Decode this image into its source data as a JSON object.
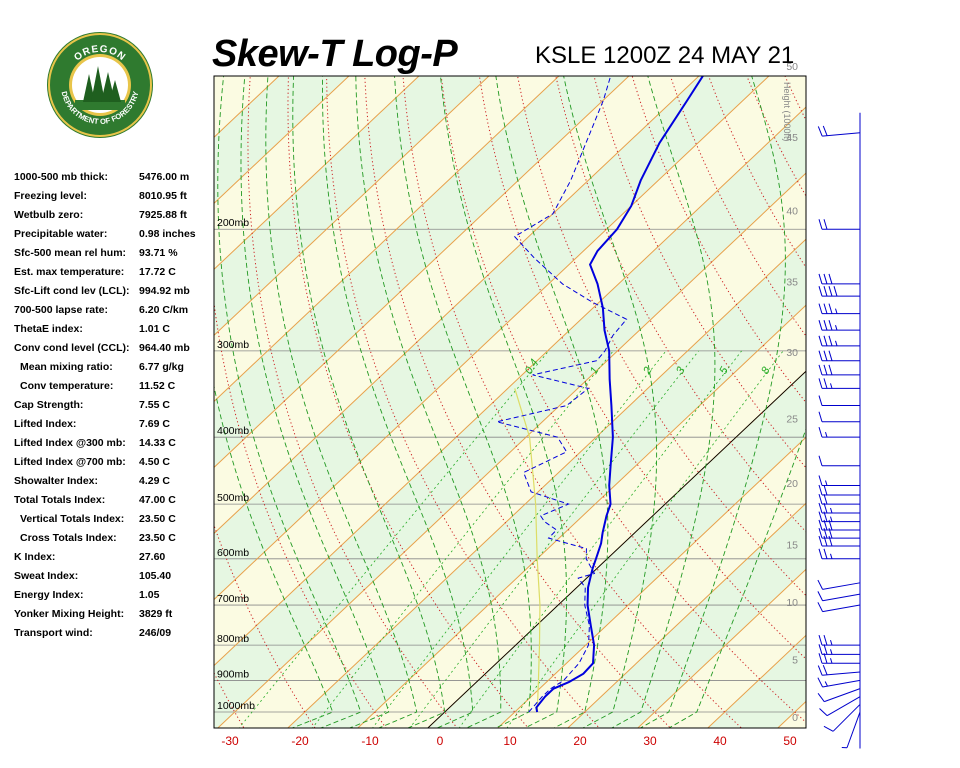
{
  "header": {
    "title": "Skew-T Log-P",
    "station_time": "KSLE 1200Z 24 MAY 21",
    "logo_text_top": "OREGON",
    "logo_text_bottom": "DEPARTMENT OF FORESTRY"
  },
  "indices": [
    {
      "label": "1000-500 mb thick:",
      "value": "5476.00 m",
      "indent": false
    },
    {
      "label": "Freezing level:",
      "value": "8010.95 ft",
      "indent": false
    },
    {
      "label": "Wetbulb zero:",
      "value": "7925.88 ft",
      "indent": false
    },
    {
      "label": "Precipitable water:",
      "value": "0.98 inches",
      "indent": false
    },
    {
      "label": "Sfc-500 mean rel hum:",
      "value": "93.71 %",
      "indent": false
    },
    {
      "label": "Est. max temperature:",
      "value": "17.72 C",
      "indent": false
    },
    {
      "label": "Sfc-Lift cond lev (LCL):",
      "value": "994.92 mb",
      "indent": false
    },
    {
      "label": "700-500 lapse rate:",
      "value": "6.20 C/km",
      "indent": false
    },
    {
      "label": "ThetaE index:",
      "value": "1.01 C",
      "indent": false
    },
    {
      "label": "Conv cond level (CCL):",
      "value": "964.40 mb",
      "indent": false
    },
    {
      "label": "Mean mixing ratio:",
      "value": "6.77 g/kg",
      "indent": true
    },
    {
      "label": "Conv temperature:",
      "value": "11.52 C",
      "indent": true
    },
    {
      "label": "Cap Strength:",
      "value": "7.55 C",
      "indent": false
    },
    {
      "label": "Lifted Index:",
      "value": "7.69 C",
      "indent": false
    },
    {
      "label": "Lifted Index @300 mb:",
      "value": "14.33 C",
      "indent": false
    },
    {
      "label": "Lifted Index @700 mb:",
      "value": "4.50 C",
      "indent": false
    },
    {
      "label": "Showalter Index:",
      "value": "4.29 C",
      "indent": false
    },
    {
      "label": "Total Totals Index:",
      "value": "47.00 C",
      "indent": false
    },
    {
      "label": "Vertical Totals Index:",
      "value": "23.50 C",
      "indent": true
    },
    {
      "label": "Cross Totals Index:",
      "value": "23.50 C",
      "indent": true
    },
    {
      "label": "K Index:",
      "value": "27.60",
      "indent": false
    },
    {
      "label": "Sweat Index:",
      "value": "105.40",
      "indent": false
    },
    {
      "label": "Energy Index:",
      "value": "1.05",
      "indent": false
    },
    {
      "label": "Yonker Mixing Height:",
      "value": "3829 ft",
      "indent": false
    },
    {
      "label": "Transport wind:",
      "value": "246/09",
      "indent": false
    }
  ],
  "chart_data": {
    "type": "line",
    "title": "Skew-T Log-P",
    "subtitle": "KSLE 1200Z 24 MAY 21",
    "xlabel": "",
    "ylabel": "",
    "x_ticks": [
      -30,
      -20,
      -10,
      0,
      10,
      20,
      30,
      40,
      50
    ],
    "pressure_levels": [
      {
        "p": 200,
        "label": "200mb"
      },
      {
        "p": 300,
        "label": "300mb"
      },
      {
        "p": 400,
        "label": "400mb"
      },
      {
        "p": 500,
        "label": "500mb"
      },
      {
        "p": 600,
        "label": "600mb"
      },
      {
        "p": 700,
        "label": "700mb"
      },
      {
        "p": 800,
        "label": "800mb"
      },
      {
        "p": 900,
        "label": "900mb"
      },
      {
        "p": 1000,
        "label": "1000mb"
      }
    ],
    "height_axis_label": "Height (1000ft)",
    "height_ticks": [
      {
        "kft": 0,
        "p": 1016
      },
      {
        "kft": 5,
        "p": 840
      },
      {
        "kft": 10,
        "p": 693
      },
      {
        "kft": 15,
        "p": 572
      },
      {
        "kft": 20,
        "p": 466
      },
      {
        "kft": 25,
        "p": 376
      },
      {
        "kft": 30,
        "p": 301
      },
      {
        "kft": 35,
        "p": 238
      },
      {
        "kft": 40,
        "p": 188
      },
      {
        "kft": 45,
        "p": 147
      },
      {
        "kft": 50,
        "p": 116
      }
    ],
    "mixing_ratio_labels": [
      "0.4",
      "1",
      "2",
      "3",
      "5",
      "8"
    ],
    "mixing_ratio_values": [
      0.4,
      1,
      2,
      3,
      5,
      8
    ],
    "series": [
      {
        "key": "temperature",
        "color": "#0000dd",
        "points": [
          {
            "p": 1000,
            "t": 13.2
          },
          {
            "p": 985,
            "t": 12.4
          },
          {
            "p": 950,
            "t": 12.0
          },
          {
            "p": 925,
            "t": 12.0
          },
          {
            "p": 905,
            "t": 13.2
          },
          {
            "p": 880,
            "t": 14.0
          },
          {
            "p": 850,
            "t": 13.8
          },
          {
            "p": 800,
            "t": 11.2
          },
          {
            "p": 750,
            "t": 7.8
          },
          {
            "p": 700,
            "t": 4.2
          },
          {
            "p": 660,
            "t": 1.6
          },
          {
            "p": 620,
            "t": -0.6
          },
          {
            "p": 600,
            "t": -1.6
          },
          {
            "p": 570,
            "t": -3.2
          },
          {
            "p": 550,
            "t": -4.6
          },
          {
            "p": 520,
            "t": -6.6
          },
          {
            "p": 500,
            "t": -7.8
          },
          {
            "p": 470,
            "t": -10.8
          },
          {
            "p": 440,
            "t": -13.6
          },
          {
            "p": 400,
            "t": -17.6
          },
          {
            "p": 360,
            "t": -22.6
          },
          {
            "p": 330,
            "t": -26.8
          },
          {
            "p": 300,
            "t": -31.2
          },
          {
            "p": 280,
            "t": -35.0
          },
          {
            "p": 260,
            "t": -38.6
          },
          {
            "p": 240,
            "t": -43.0
          },
          {
            "p": 225,
            "t": -47.0
          },
          {
            "p": 215,
            "t": -48.0
          },
          {
            "p": 200,
            "t": -48.5
          },
          {
            "p": 185,
            "t": -50.0
          },
          {
            "p": 170,
            "t": -52.5
          },
          {
            "p": 150,
            "t": -55.5
          },
          {
            "p": 130,
            "t": -58.0
          },
          {
            "p": 110,
            "t": -61.0
          }
        ]
      },
      {
        "key": "dewpoint",
        "color": "#0000dd",
        "points": [
          {
            "p": 1000,
            "t": 12.0
          },
          {
            "p": 950,
            "t": 11.6
          },
          {
            "p": 925,
            "t": 11.6
          },
          {
            "p": 900,
            "t": 12.2
          },
          {
            "p": 850,
            "t": 11.8
          },
          {
            "p": 800,
            "t": 10.4
          },
          {
            "p": 750,
            "t": 7.6
          },
          {
            "p": 700,
            "t": 3.8
          },
          {
            "p": 660,
            "t": 1.2
          },
          {
            "p": 640,
            "t": -1.2
          },
          {
            "p": 630,
            "t": 0.4
          },
          {
            "p": 600,
            "t": -3.0
          },
          {
            "p": 580,
            "t": -4.5
          },
          {
            "p": 560,
            "t": -11.5
          },
          {
            "p": 545,
            "t": -11.6
          },
          {
            "p": 530,
            "t": -14.6
          },
          {
            "p": 520,
            "t": -16.0
          },
          {
            "p": 500,
            "t": -13.8
          },
          {
            "p": 480,
            "t": -21.0
          },
          {
            "p": 450,
            "t": -25.0
          },
          {
            "p": 420,
            "t": -22.0
          },
          {
            "p": 400,
            "t": -25.5
          },
          {
            "p": 380,
            "t": -36.5
          },
          {
            "p": 360,
            "t": -29.0
          },
          {
            "p": 340,
            "t": -28.5
          },
          {
            "p": 325,
            "t": -38.5
          },
          {
            "p": 310,
            "t": -31.5
          },
          {
            "p": 300,
            "t": -31.8
          },
          {
            "p": 285,
            "t": -33.0
          },
          {
            "p": 270,
            "t": -33.5
          },
          {
            "p": 255,
            "t": -41.0
          },
          {
            "p": 240,
            "t": -48.0
          },
          {
            "p": 220,
            "t": -56.0
          },
          {
            "p": 205,
            "t": -62.0
          },
          {
            "p": 190,
            "t": -60.0
          },
          {
            "p": 170,
            "t": -62.5
          },
          {
            "p": 150,
            "t": -66.0
          },
          {
            "p": 130,
            "t": -70.0
          },
          {
            "p": 115,
            "t": -74.0
          }
        ]
      }
    ],
    "parcel_trace": [
      {
        "p": 1000,
        "t": 13.2
      },
      {
        "p": 995,
        "t": 13.0
      },
      {
        "p": 900,
        "t": 8.6
      },
      {
        "p": 800,
        "t": 3.4
      },
      {
        "p": 700,
        "t": -2.6
      },
      {
        "p": 600,
        "t": -10.0
      },
      {
        "p": 500,
        "t": -18.5
      },
      {
        "p": 400,
        "t": -29.5
      },
      {
        "p": 340,
        "t": -39.0
      }
    ],
    "wind_barbs": [
      {
        "p": 1000,
        "dir": 200,
        "kt": 5
      },
      {
        "p": 975,
        "dir": 225,
        "kt": 10
      },
      {
        "p": 950,
        "dir": 240,
        "kt": 10
      },
      {
        "p": 925,
        "dir": 250,
        "kt": 10
      },
      {
        "p": 900,
        "dir": 260,
        "kt": 15
      },
      {
        "p": 875,
        "dir": 265,
        "kt": 20
      },
      {
        "p": 850,
        "dir": 270,
        "kt": 25
      },
      {
        "p": 825,
        "dir": 270,
        "kt": 25
      },
      {
        "p": 800,
        "dir": 270,
        "kt": 25
      },
      {
        "p": 700,
        "dir": 260,
        "kt": 10
      },
      {
        "p": 675,
        "dir": 260,
        "kt": 10
      },
      {
        "p": 650,
        "dir": 260,
        "kt": 10
      },
      {
        "p": 600,
        "dir": 270,
        "kt": 25
      },
      {
        "p": 575,
        "dir": 270,
        "kt": 30
      },
      {
        "p": 560,
        "dir": 270,
        "kt": 30
      },
      {
        "p": 545,
        "dir": 270,
        "kt": 30
      },
      {
        "p": 530,
        "dir": 270,
        "kt": 25
      },
      {
        "p": 515,
        "dir": 270,
        "kt": 25
      },
      {
        "p": 500,
        "dir": 270,
        "kt": 20
      },
      {
        "p": 485,
        "dir": 270,
        "kt": 20
      },
      {
        "p": 470,
        "dir": 270,
        "kt": 15
      },
      {
        "p": 440,
        "dir": 270,
        "kt": 10
      },
      {
        "p": 400,
        "dir": 270,
        "kt": 15
      },
      {
        "p": 380,
        "dir": 270,
        "kt": 10
      },
      {
        "p": 360,
        "dir": 270,
        "kt": 10
      },
      {
        "p": 340,
        "dir": 270,
        "kt": 25
      },
      {
        "p": 325,
        "dir": 270,
        "kt": 30
      },
      {
        "p": 310,
        "dir": 270,
        "kt": 30
      },
      {
        "p": 295,
        "dir": 270,
        "kt": 35
      },
      {
        "p": 280,
        "dir": 270,
        "kt": 35
      },
      {
        "p": 265,
        "dir": 270,
        "kt": 35
      },
      {
        "p": 250,
        "dir": 270,
        "kt": 40
      },
      {
        "p": 240,
        "dir": 270,
        "kt": 30
      },
      {
        "p": 200,
        "dir": 270,
        "kt": 20
      },
      {
        "p": 145,
        "dir": 265,
        "kt": 20
      }
    ]
  },
  "colors": {
    "moist_band": "#e6f7e2",
    "dry_band": "#fbfbe2",
    "isotherm": "#e8a04a",
    "dry_adiabat": "#cc2222",
    "moist_adiabat": "#229922",
    "mixing_ratio": "#22aa22",
    "isobar": "#888888",
    "profile": "#0000dd",
    "parcel": "#dddd66",
    "tick_label": "#cc0000"
  }
}
